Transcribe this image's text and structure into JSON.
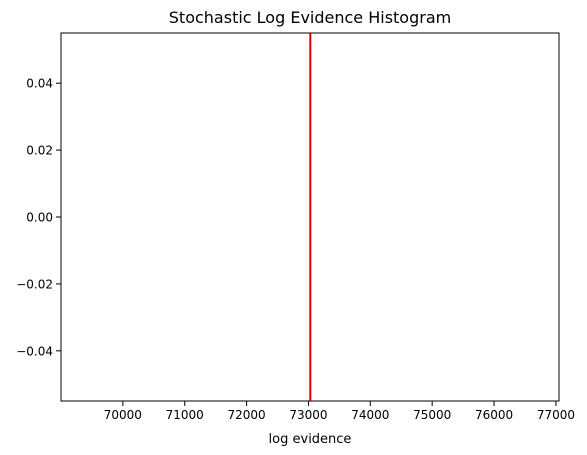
{
  "chart_data": {
    "type": "histogram",
    "title": "Stochastic Log Evidence Histogram",
    "xlabel": "log evidence",
    "ylabel": "",
    "xlim": [
      69000,
      77050
    ],
    "ylim": [
      -0.055,
      0.055
    ],
    "xticks": [
      70000,
      71000,
      72000,
      73000,
      74000,
      75000,
      76000,
      77000
    ],
    "yticks": [
      -0.04,
      -0.02,
      0.0,
      0.02,
      0.04
    ],
    "xtick_labels": [
      "70000",
      "71000",
      "72000",
      "73000",
      "74000",
      "75000",
      "76000",
      "77000"
    ],
    "ytick_labels": [
      "−0.04",
      "−0.02",
      "0.00",
      "0.02",
      "0.04"
    ],
    "bins": [],
    "reference_line": {
      "x": 73030,
      "color": "#e00000"
    },
    "grid": false
  }
}
